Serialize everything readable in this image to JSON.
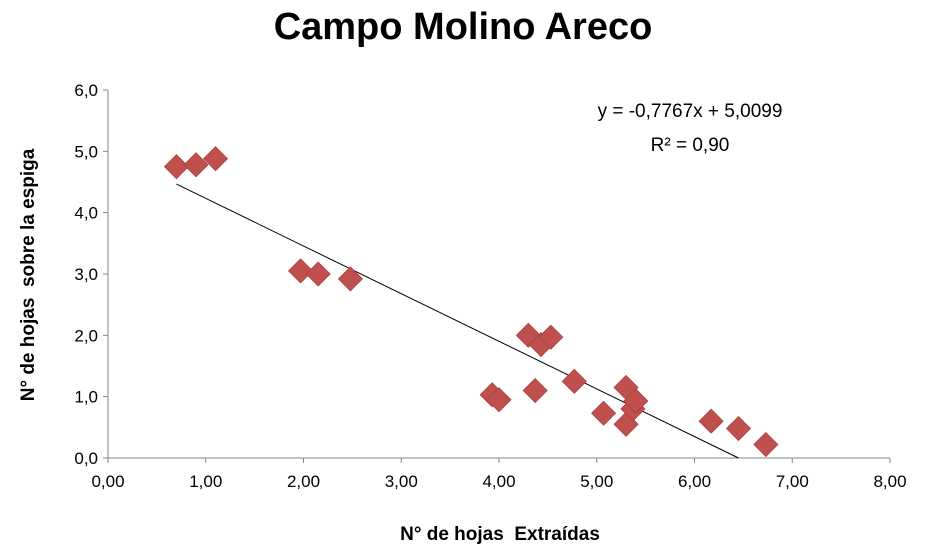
{
  "chart_data": {
    "type": "scatter",
    "title": "Campo Molino Areco",
    "xlabel": "N° de hojas  Extraídas",
    "ylabel": "N° de hojas  sobre la espiga",
    "xlim": [
      0,
      8
    ],
    "ylim": [
      0,
      6
    ],
    "x_ticks": [
      "0,00",
      "1,00",
      "2,00",
      "3,00",
      "4,00",
      "5,00",
      "6,00",
      "7,00",
      "8,00"
    ],
    "y_ticks": [
      "0,0",
      "1,0",
      "2,0",
      "3,0",
      "4,0",
      "5,0",
      "6,0"
    ],
    "grid": false,
    "legend": "none",
    "marker_color": "#c0504d",
    "trendline_color": "#000000",
    "points": [
      {
        "x": 0.7,
        "y": 4.75
      },
      {
        "x": 0.9,
        "y": 4.78
      },
      {
        "x": 1.1,
        "y": 4.88
      },
      {
        "x": 1.97,
        "y": 3.05
      },
      {
        "x": 2.15,
        "y": 3.0
      },
      {
        "x": 2.48,
        "y": 2.92
      },
      {
        "x": 3.93,
        "y": 1.03
      },
      {
        "x": 4.0,
        "y": 0.95
      },
      {
        "x": 4.3,
        "y": 2.0
      },
      {
        "x": 4.37,
        "y": 1.1
      },
      {
        "x": 4.43,
        "y": 1.85
      },
      {
        "x": 4.53,
        "y": 1.97
      },
      {
        "x": 4.77,
        "y": 1.25
      },
      {
        "x": 5.07,
        "y": 0.73
      },
      {
        "x": 5.3,
        "y": 1.15
      },
      {
        "x": 5.3,
        "y": 0.55
      },
      {
        "x": 5.37,
        "y": 0.8
      },
      {
        "x": 5.4,
        "y": 0.93
      },
      {
        "x": 6.17,
        "y": 0.6
      },
      {
        "x": 6.45,
        "y": 0.48
      },
      {
        "x": 6.73,
        "y": 0.22
      }
    ],
    "trendline": {
      "slope": -0.7767,
      "intercept": 5.0099,
      "x_start": 0.7,
      "x_end": 6.45
    },
    "annotations": [
      "y = -0,7767x + 5,0099",
      "R² = 0,90"
    ]
  }
}
